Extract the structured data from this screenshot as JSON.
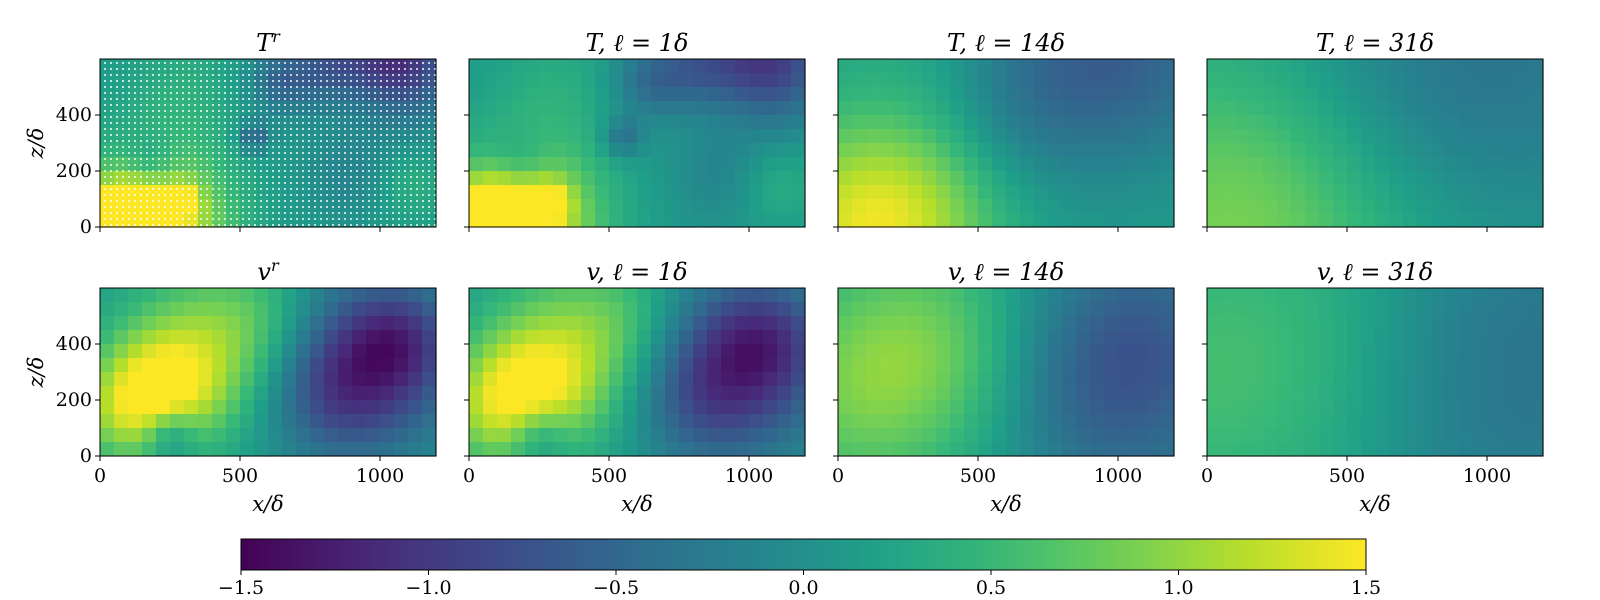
{
  "figure": {
    "panels": [
      {
        "title": "T^r",
        "field": "T",
        "smoothing": "raw"
      },
      {
        "title": "T, ℓ = 1δ",
        "field": "T",
        "smoothing": "1δ"
      },
      {
        "title": "T, ℓ = 14δ",
        "field": "T",
        "smoothing": "14δ"
      },
      {
        "title": "T, ℓ = 31δ",
        "field": "T",
        "smoothing": "31δ"
      },
      {
        "title": "v^r",
        "field": "v",
        "smoothing": "raw"
      },
      {
        "title": "v, ℓ = 1δ",
        "field": "v",
        "smoothing": "1δ"
      },
      {
        "title": "v, ℓ = 14δ",
        "field": "v",
        "smoothing": "14δ"
      },
      {
        "title": "v, ℓ = 31δ",
        "field": "v",
        "smoothing": "31δ"
      }
    ],
    "colormap": "viridis"
  },
  "chart_data": {
    "type": "heatmap",
    "xlabel": "x/δ",
    "ylabel": "z/δ",
    "xlim": [
      0,
      1200
    ],
    "ylim": [
      0,
      600
    ],
    "x_ticks": [
      0,
      500,
      1000
    ],
    "y_ticks": [
      0,
      200,
      400
    ],
    "colorbar": {
      "range": [
        -1.5,
        1.5
      ],
      "ticks": [
        -1.5,
        -1.0,
        -0.5,
        0.0,
        0.5,
        1.0,
        1.5
      ],
      "tick_labels": [
        "−1.5",
        "−1.0",
        "−0.5",
        "0.0",
        "0.5",
        "1.0",
        "1.5"
      ],
      "colormap": "viridis"
    }
  }
}
